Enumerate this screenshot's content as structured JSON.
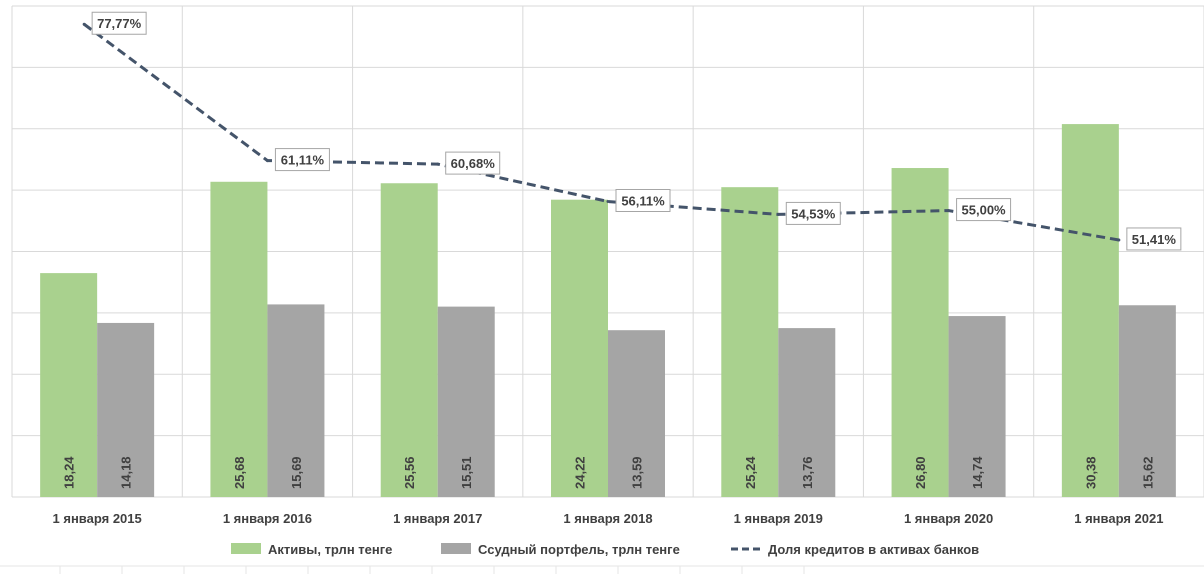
{
  "chart_data": {
    "type": "bar",
    "categories": [
      "1 января 2015",
      "1 января 2016",
      "1 января 2017",
      "1 января 2018",
      "1 января 2019",
      "1 января 2020",
      "1 января 2021"
    ],
    "series": [
      {
        "name": "Активы, трлн тенге",
        "type": "bar",
        "values": [
          18.24,
          25.68,
          25.56,
          24.22,
          25.24,
          26.8,
          30.38
        ],
        "labels": [
          "18,24",
          "25,68",
          "25,56",
          "24,22",
          "25,24",
          "26,80",
          "30,38"
        ],
        "color": "#a9d18e"
      },
      {
        "name": "Ссудный портфель, трлн тенге",
        "type": "bar",
        "values": [
          14.18,
          15.69,
          15.51,
          13.59,
          13.76,
          14.74,
          15.62
        ],
        "labels": [
          "14,18",
          "15,69",
          "15,51",
          "13,59",
          "13,76",
          "14,74",
          "15,62"
        ],
        "color": "#a5a5a5"
      },
      {
        "name": "Доля кредитов в активах банков",
        "type": "line",
        "axis": "secondary",
        "values": [
          77.77,
          61.11,
          60.68,
          56.11,
          54.53,
          55.0,
          51.41
        ],
        "labels": [
          "77,77%",
          "61,11%",
          "60,68%",
          "56,11%",
          "54,53%",
          "55,00%",
          "51,41%"
        ],
        "color": "#44546a",
        "dash": "dashed"
      }
    ],
    "ylim": [
      0,
      40
    ],
    "y2lim": [
      20,
      80
    ],
    "grid": true,
    "legend": "bottom"
  }
}
